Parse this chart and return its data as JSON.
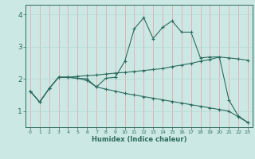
{
  "xlabel": "Humidex (Indice chaleur)",
  "background_color": "#cce8e4",
  "line_color": "#2d6b5e",
  "grid_color_h": "#b5d8d3",
  "grid_color_v": "#e8a0a0",
  "xlim": [
    -0.5,
    23.5
  ],
  "ylim": [
    0.5,
    4.3
  ],
  "xticks": [
    0,
    1,
    2,
    3,
    4,
    5,
    6,
    7,
    8,
    9,
    10,
    11,
    12,
    13,
    14,
    15,
    16,
    17,
    18,
    19,
    20,
    21,
    22,
    23
  ],
  "yticks": [
    1,
    2,
    3,
    4
  ],
  "series1_x": [
    0,
    1,
    2,
    3,
    4,
    5,
    6,
    7,
    8,
    9,
    10,
    11,
    12,
    13,
    14,
    15,
    16,
    17,
    18,
    19,
    20,
    21,
    22,
    23
  ],
  "series1_y": [
    1.62,
    1.28,
    1.7,
    2.05,
    2.05,
    2.02,
    1.95,
    1.75,
    2.02,
    2.05,
    2.55,
    3.55,
    3.9,
    3.25,
    3.6,
    3.8,
    3.45,
    3.45,
    2.65,
    2.68,
    2.68,
    1.35,
    0.85,
    0.65
  ],
  "series2_x": [
    0,
    1,
    2,
    3,
    4,
    5,
    6,
    7,
    8,
    9,
    10,
    11,
    12,
    13,
    14,
    15,
    16,
    17,
    18,
    19,
    20,
    21,
    22,
    23
  ],
  "series2_y": [
    1.62,
    1.28,
    1.7,
    2.05,
    2.05,
    2.08,
    2.1,
    2.12,
    2.15,
    2.18,
    2.2,
    2.23,
    2.26,
    2.29,
    2.32,
    2.38,
    2.43,
    2.48,
    2.55,
    2.6,
    2.68,
    2.65,
    2.62,
    2.58
  ],
  "series3_x": [
    0,
    1,
    2,
    3,
    4,
    5,
    6,
    7,
    8,
    9,
    10,
    11,
    12,
    13,
    14,
    15,
    16,
    17,
    18,
    19,
    20,
    21,
    22,
    23
  ],
  "series3_y": [
    1.62,
    1.28,
    1.7,
    2.05,
    2.05,
    2.02,
    2.0,
    1.75,
    1.68,
    1.62,
    1.55,
    1.5,
    1.45,
    1.4,
    1.35,
    1.3,
    1.25,
    1.2,
    1.15,
    1.1,
    1.05,
    1.0,
    0.82,
    0.65
  ]
}
